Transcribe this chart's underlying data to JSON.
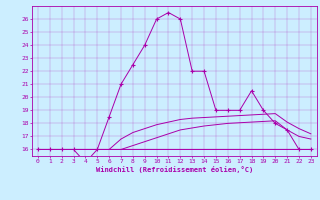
{
  "xlabel": "Windchill (Refroidissement éolien,°C)",
  "bg_color": "#cceeff",
  "line_color": "#aa00aa",
  "xlim": [
    -0.5,
    23.5
  ],
  "ylim": [
    15.5,
    27.0
  ],
  "yticks": [
    16,
    17,
    18,
    19,
    20,
    21,
    22,
    23,
    24,
    25,
    26
  ],
  "xticks": [
    0,
    1,
    2,
    3,
    4,
    5,
    6,
    7,
    8,
    9,
    10,
    11,
    12,
    13,
    14,
    15,
    16,
    17,
    18,
    19,
    20,
    21,
    22,
    23
  ],
  "series1_x": [
    0,
    1,
    2,
    3,
    4,
    5,
    6,
    7,
    8,
    9,
    10,
    11,
    12,
    13,
    14,
    15,
    16,
    17,
    18,
    19,
    20,
    21,
    22,
    23
  ],
  "series1_y": [
    16,
    16,
    16,
    16,
    15,
    16,
    18.5,
    21,
    22.5,
    24,
    26,
    26.5,
    26,
    22,
    22,
    19,
    19,
    19,
    20.5,
    19,
    18,
    17.5,
    16,
    16
  ],
  "series2_x": [
    0,
    1,
    2,
    3,
    4,
    5,
    6,
    7,
    8,
    9,
    10,
    11,
    12,
    13,
    14,
    15,
    16,
    17,
    18,
    19,
    20,
    21,
    22,
    23
  ],
  "series2_y": [
    16,
    16,
    16,
    16,
    16,
    16,
    16,
    16,
    16.3,
    16.6,
    16.9,
    17.2,
    17.5,
    17.65,
    17.8,
    17.9,
    18.0,
    18.05,
    18.1,
    18.15,
    18.2,
    17.5,
    17.0,
    16.8
  ],
  "series3_x": [
    0,
    1,
    2,
    3,
    4,
    5,
    6,
    7,
    8,
    9,
    10,
    11,
    12,
    13,
    14,
    15,
    16,
    17,
    18,
    19,
    20,
    21,
    22,
    23
  ],
  "series3_y": [
    16,
    16,
    16,
    16,
    16,
    16,
    16,
    16.8,
    17.3,
    17.6,
    17.9,
    18.1,
    18.3,
    18.4,
    18.45,
    18.5,
    18.55,
    18.6,
    18.65,
    18.7,
    18.75,
    18.1,
    17.6,
    17.2
  ],
  "series4_x": [
    0,
    23
  ],
  "series4_y": [
    16,
    16
  ]
}
